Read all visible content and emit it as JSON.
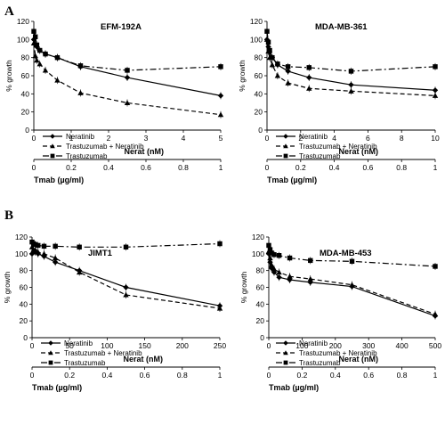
{
  "panels": [
    {
      "letter": "A"
    },
    {
      "letter": "B"
    }
  ],
  "chart_data": [
    {
      "type": "line",
      "title": "EFM-192A",
      "ylabel": "% growth",
      "ylim": [
        0,
        120
      ],
      "yticks": [
        0,
        20,
        40,
        60,
        80,
        100,
        120
      ],
      "x_axes": [
        {
          "label": "Nerat (nM)",
          "lim": [
            0,
            5
          ],
          "ticks": [
            "0",
            "1",
            "2",
            "3",
            "4",
            "5"
          ]
        },
        {
          "label": "Tmab (µg/ml)",
          "lim": [
            0,
            1
          ],
          "ticks": [
            "0",
            "0.2",
            "0.4",
            "0.6",
            "0.8",
            "1"
          ]
        }
      ],
      "legend_position": "bottom-left",
      "series": [
        {
          "name": "Neratinib",
          "style": "solid",
          "marker": "diamond",
          "x": [
            0,
            0.04,
            0.08,
            0.16,
            0.31,
            0.63,
            1.25,
            2.5,
            5
          ],
          "y": [
            100,
            95,
            92,
            88,
            84,
            80,
            70,
            58,
            38
          ]
        },
        {
          "name": "Trastuzumab + Neratinib",
          "style": "dashed",
          "marker": "triangle",
          "x": [
            0,
            0.04,
            0.08,
            0.16,
            0.31,
            0.63,
            1.25,
            2.5,
            5
          ],
          "y": [
            96,
            82,
            77,
            73,
            66,
            55,
            41,
            30,
            17
          ]
        },
        {
          "name": "Trastuzumab",
          "style": "dashdot",
          "marker": "square",
          "x": [
            0,
            0.04,
            0.08,
            0.16,
            0.31,
            0.63,
            1.25,
            2.5,
            5
          ],
          "y": [
            109,
            103,
            94,
            88,
            84,
            80,
            71,
            66,
            70
          ]
        }
      ]
    },
    {
      "type": "line",
      "title": "MDA-MB-361",
      "ylabel": "% growth",
      "ylim": [
        0,
        120
      ],
      "yticks": [
        0,
        20,
        40,
        60,
        80,
        100,
        120
      ],
      "x_axes": [
        {
          "label": "Nerat (nM)",
          "lim": [
            0,
            10
          ],
          "ticks": [
            "0",
            "2",
            "4",
            "6",
            "8",
            "10"
          ]
        },
        {
          "label": "Tmab (µg/ml)",
          "lim": [
            0,
            1
          ],
          "ticks": [
            "0",
            "0.2",
            "0.4",
            "0.6",
            "0.8",
            "1"
          ]
        }
      ],
      "legend_position": "bottom-left",
      "series": [
        {
          "name": "Neratinib",
          "style": "solid",
          "marker": "diamond",
          "x": [
            0,
            0.08,
            0.16,
            0.31,
            0.63,
            1.25,
            2.5,
            5,
            10
          ],
          "y": [
            100,
            92,
            86,
            80,
            72,
            65,
            58,
            50,
            44
          ]
        },
        {
          "name": "Trastuzumab + Neratinib",
          "style": "dashed",
          "marker": "triangle",
          "x": [
            0,
            0.08,
            0.16,
            0.31,
            0.63,
            1.25,
            2.5,
            5,
            10
          ],
          "y": [
            100,
            87,
            80,
            72,
            60,
            52,
            46,
            43,
            38
          ]
        },
        {
          "name": "Trastuzumab",
          "style": "dashdot",
          "marker": "square",
          "x": [
            0,
            0.08,
            0.16,
            0.31,
            0.63,
            1.25,
            2.5,
            5,
            10
          ],
          "y": [
            109,
            97,
            88,
            80,
            73,
            70,
            69,
            65,
            70
          ]
        }
      ]
    },
    {
      "type": "line",
      "title": "JIMT1",
      "ylabel": "% growth",
      "ylim": [
        0,
        120
      ],
      "yticks": [
        0,
        20,
        40,
        60,
        80,
        100,
        120
      ],
      "x_axes": [
        {
          "label": "Nerat (nM)",
          "lim": [
            0,
            250
          ],
          "ticks": [
            "0",
            "50",
            "100",
            "150",
            "200",
            "250"
          ]
        },
        {
          "label": "Tmab (µg/ml)",
          "lim": [
            0,
            1
          ],
          "ticks": [
            "0",
            "0.2",
            "0.4",
            "0.6",
            "0.8",
            "1"
          ]
        }
      ],
      "legend_position": "bottom-left",
      "series": [
        {
          "name": "Neratinib",
          "style": "solid",
          "marker": "diamond",
          "x": [
            0,
            2,
            4,
            8,
            16,
            31,
            63,
            125,
            250
          ],
          "y": [
            100,
            103,
            104,
            100,
            97,
            90,
            80,
            60,
            38
          ]
        },
        {
          "name": "Trastuzumab + Neratinib",
          "style": "dashed",
          "marker": "triangle",
          "x": [
            0,
            2,
            4,
            8,
            16,
            31,
            63,
            125,
            250
          ],
          "y": [
            108,
            104,
            102,
            102,
            100,
            95,
            78,
            51,
            35
          ]
        },
        {
          "name": "Trastuzumab",
          "style": "dashdot",
          "marker": "square",
          "x": [
            0,
            2,
            4,
            8,
            16,
            31,
            63,
            125,
            250
          ],
          "y": [
            114,
            112,
            111,
            110,
            109,
            109,
            108,
            108,
            112
          ]
        }
      ]
    },
    {
      "type": "line",
      "title": "MDA-MB-453",
      "ylabel": "% growth",
      "ylim": [
        0,
        120
      ],
      "yticks": [
        0,
        20,
        40,
        60,
        80,
        100,
        120
      ],
      "x_axes": [
        {
          "label": "Nerat (nM)",
          "lim": [
            0,
            500
          ],
          "ticks": [
            "0",
            "100",
            "200",
            "300",
            "400",
            "500"
          ]
        },
        {
          "label": "Tmab (µg/ml)",
          "lim": [
            0,
            1
          ],
          "ticks": [
            "0",
            "0.2",
            "0.4",
            "0.6",
            "0.8",
            "1"
          ]
        }
      ],
      "legend_position": "bottom-left",
      "series": [
        {
          "name": "Neratinib",
          "style": "solid",
          "marker": "diamond",
          "x": [
            0,
            4,
            8,
            16,
            31,
            63,
            125,
            250,
            500
          ],
          "y": [
            100,
            90,
            83,
            78,
            72,
            69,
            66,
            61,
            26
          ]
        },
        {
          "name": "Trastuzumab + Neratinib",
          "style": "dashed",
          "marker": "triangle",
          "x": [
            0,
            4,
            8,
            16,
            31,
            63,
            125,
            250,
            500
          ],
          "y": [
            103,
            95,
            87,
            82,
            78,
            73,
            70,
            63,
            28
          ]
        },
        {
          "name": "Trastuzumab",
          "style": "dashdot",
          "marker": "square",
          "x": [
            0,
            4,
            8,
            16,
            31,
            63,
            125,
            250,
            500
          ],
          "y": [
            110,
            105,
            101,
            99,
            98,
            95,
            92,
            91,
            85
          ]
        }
      ]
    }
  ]
}
